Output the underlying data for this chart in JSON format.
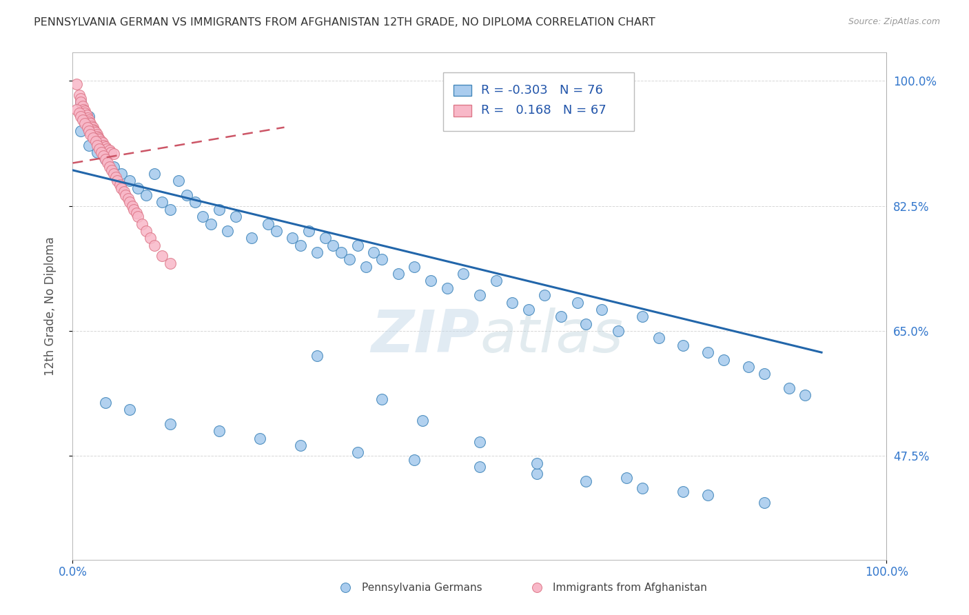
{
  "title": "PENNSYLVANIA GERMAN VS IMMIGRANTS FROM AFGHANISTAN 12TH GRADE, NO DIPLOMA CORRELATION CHART",
  "source": "Source: ZipAtlas.com",
  "ylabel": "12th Grade, No Diploma",
  "watermark_zip": "ZIP",
  "watermark_atlas": "atlas",
  "xlim": [
    0.0,
    1.0
  ],
  "ylim": [
    0.33,
    1.04
  ],
  "yticks": [
    0.475,
    0.65,
    0.825,
    1.0
  ],
  "ytick_labels": [
    "47.5%",
    "65.0%",
    "82.5%",
    "100.0%"
  ],
  "xtick_labels": [
    "0.0%",
    "100.0%"
  ],
  "legend_r_blue": "-0.303",
  "legend_n_blue": "76",
  "legend_r_pink": "0.168",
  "legend_n_pink": "67",
  "blue_color": "#aaccee",
  "blue_edge_color": "#4488bb",
  "blue_line_color": "#2266aa",
  "pink_color": "#f8b8c8",
  "pink_edge_color": "#dd7788",
  "pink_line_color": "#cc5566",
  "blue_trend_x": [
    0.0,
    0.92
  ],
  "blue_trend_y": [
    0.875,
    0.62
  ],
  "pink_trend_x": [
    0.0,
    0.26
  ],
  "pink_trend_y": [
    0.885,
    0.935
  ],
  "blue_scatter_x": [
    0.01,
    0.01,
    0.02,
    0.02,
    0.03,
    0.03,
    0.04,
    0.05,
    0.06,
    0.07,
    0.08,
    0.09,
    0.1,
    0.11,
    0.12,
    0.13,
    0.14,
    0.15,
    0.16,
    0.17,
    0.18,
    0.19,
    0.2,
    0.22,
    0.24,
    0.25,
    0.27,
    0.28,
    0.29,
    0.3,
    0.31,
    0.32,
    0.33,
    0.34,
    0.35,
    0.36,
    0.37,
    0.38,
    0.4,
    0.42,
    0.44,
    0.46,
    0.48,
    0.5,
    0.52,
    0.54,
    0.56,
    0.58,
    0.6,
    0.62,
    0.63,
    0.65,
    0.67,
    0.7,
    0.72,
    0.75,
    0.78,
    0.8,
    0.83,
    0.85,
    0.88,
    0.9,
    0.04,
    0.07,
    0.12,
    0.18,
    0.23,
    0.28,
    0.35,
    0.42,
    0.5,
    0.57,
    0.63,
    0.7,
    0.78,
    0.85
  ],
  "blue_scatter_y": [
    0.97,
    0.93,
    0.95,
    0.91,
    0.92,
    0.9,
    0.89,
    0.88,
    0.87,
    0.86,
    0.85,
    0.84,
    0.87,
    0.83,
    0.82,
    0.86,
    0.84,
    0.83,
    0.81,
    0.8,
    0.82,
    0.79,
    0.81,
    0.78,
    0.8,
    0.79,
    0.78,
    0.77,
    0.79,
    0.76,
    0.78,
    0.77,
    0.76,
    0.75,
    0.77,
    0.74,
    0.76,
    0.75,
    0.73,
    0.74,
    0.72,
    0.71,
    0.73,
    0.7,
    0.72,
    0.69,
    0.68,
    0.7,
    0.67,
    0.69,
    0.66,
    0.68,
    0.65,
    0.67,
    0.64,
    0.63,
    0.62,
    0.61,
    0.6,
    0.59,
    0.57,
    0.56,
    0.55,
    0.54,
    0.52,
    0.51,
    0.5,
    0.49,
    0.48,
    0.47,
    0.46,
    0.45,
    0.44,
    0.43,
    0.42,
    0.41
  ],
  "blue_scatter_x2": [
    0.3,
    0.38,
    0.43,
    0.5,
    0.57,
    0.68,
    0.75
  ],
  "blue_scatter_y2": [
    0.615,
    0.555,
    0.525,
    0.495,
    0.465,
    0.445,
    0.425
  ],
  "pink_scatter_x": [
    0.005,
    0.008,
    0.01,
    0.01,
    0.012,
    0.013,
    0.015,
    0.015,
    0.017,
    0.018,
    0.02,
    0.02,
    0.022,
    0.023,
    0.025,
    0.025,
    0.027,
    0.028,
    0.03,
    0.03,
    0.032,
    0.033,
    0.035,
    0.037,
    0.038,
    0.04,
    0.042,
    0.045,
    0.047,
    0.05,
    0.005,
    0.008,
    0.01,
    0.012,
    0.015,
    0.018,
    0.02,
    0.022,
    0.025,
    0.028,
    0.03,
    0.033,
    0.035,
    0.038,
    0.04,
    0.043,
    0.045,
    0.048,
    0.05,
    0.053,
    0.055,
    0.058,
    0.06,
    0.063,
    0.065,
    0.068,
    0.07,
    0.073,
    0.075,
    0.078,
    0.08,
    0.085,
    0.09,
    0.095,
    0.1,
    0.11,
    0.12
  ],
  "pink_scatter_y": [
    0.995,
    0.98,
    0.975,
    0.97,
    0.965,
    0.96,
    0.958,
    0.955,
    0.952,
    0.948,
    0.945,
    0.942,
    0.94,
    0.937,
    0.935,
    0.932,
    0.93,
    0.928,
    0.925,
    0.922,
    0.92,
    0.918,
    0.915,
    0.913,
    0.91,
    0.908,
    0.905,
    0.903,
    0.9,
    0.898,
    0.96,
    0.955,
    0.95,
    0.945,
    0.94,
    0.935,
    0.93,
    0.925,
    0.92,
    0.915,
    0.91,
    0.905,
    0.9,
    0.895,
    0.89,
    0.885,
    0.88,
    0.875,
    0.87,
    0.865,
    0.86,
    0.855,
    0.85,
    0.845,
    0.84,
    0.835,
    0.83,
    0.825,
    0.82,
    0.815,
    0.81,
    0.8,
    0.79,
    0.78,
    0.77,
    0.755,
    0.745
  ],
  "background_color": "#ffffff",
  "grid_color": "#bbbbbb"
}
